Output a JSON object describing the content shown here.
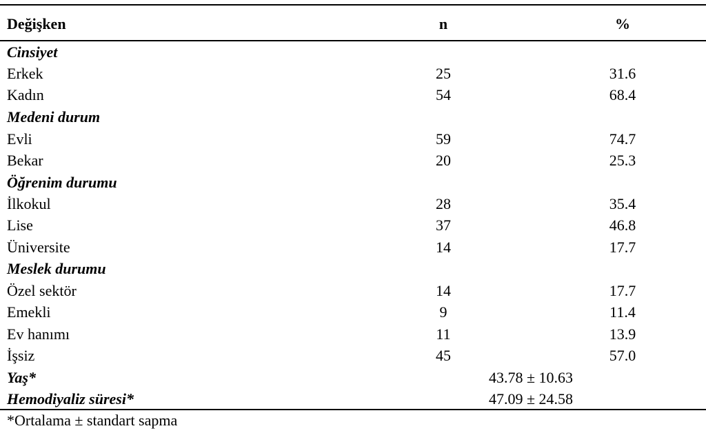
{
  "table": {
    "headers": {
      "variable": "Değişken",
      "n": "n",
      "percent": "%"
    },
    "groups": [
      {
        "title": "Cinsiyet",
        "rows": [
          {
            "label": "Erkek",
            "n": "25",
            "pct": "31.6"
          },
          {
            "label": "Kadın",
            "n": "54",
            "pct": "68.4"
          }
        ]
      },
      {
        "title": "Medeni durum",
        "rows": [
          {
            "label": "Evli",
            "n": "59",
            "pct": "74.7"
          },
          {
            "label": "Bekar",
            "n": "20",
            "pct": "25.3"
          }
        ]
      },
      {
        "title": "Öğrenim durumu",
        "rows": [
          {
            "label": "İlkokul",
            "n": "28",
            "pct": "35.4"
          },
          {
            "label": "Lise",
            "n": "37",
            "pct": "46.8"
          },
          {
            "label": "Üniversite",
            "n": "14",
            "pct": "17.7"
          }
        ]
      },
      {
        "title": "Meslek durumu",
        "rows": [
          {
            "label": "Özel sektör",
            "n": "14",
            "pct": "17.7"
          },
          {
            "label": "Emekli",
            "n": "9",
            "pct": "11.4"
          },
          {
            "label": "Ev hanımı",
            "n": "11",
            "pct": "13.9"
          },
          {
            "label": "İşsiz",
            "n": "45",
            "pct": "57.0"
          }
        ]
      }
    ],
    "summary": [
      {
        "label": "Yaş*",
        "value": "43.78  ± 10.63"
      },
      {
        "label": "Hemodiyaliz süresi*",
        "value": "47.09 ± 24.58"
      }
    ]
  },
  "footnote": "*Ortalama  ± standart sapma"
}
